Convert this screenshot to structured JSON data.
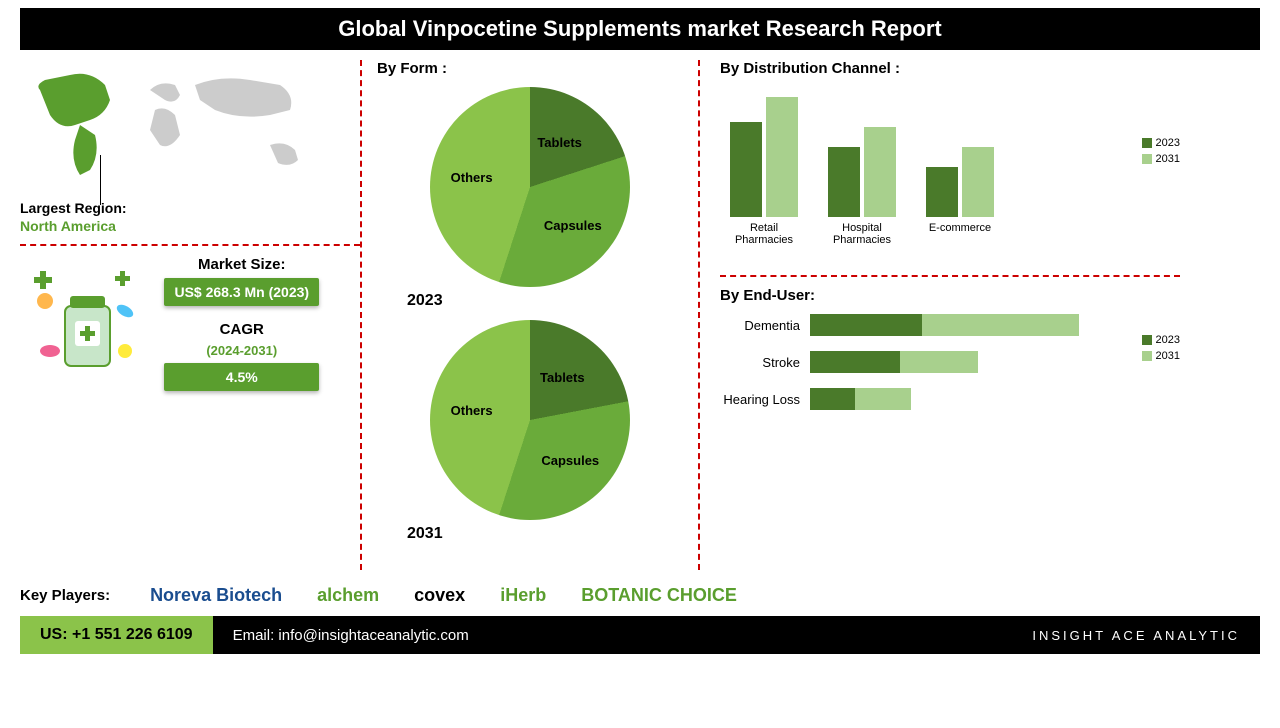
{
  "title": "Global Vinpocetine Supplements market Research Report",
  "region": {
    "label": "Largest Region:",
    "value": "North America",
    "map_fill": "#5a9e2e",
    "map_other": "#cccccc"
  },
  "market_size": {
    "label": "Market Size:",
    "value": "US$ 268.3 Mn (2023)"
  },
  "cagr": {
    "label": "CAGR",
    "period": "(2024-2031)",
    "value": "4.5%"
  },
  "form": {
    "title": "By Form :",
    "years": [
      "2023",
      "2031"
    ],
    "pie2023": {
      "slices": [
        {
          "label": "Tablets",
          "value": 20,
          "color": "#4a7a2a"
        },
        {
          "label": "Capsules",
          "value": 35,
          "color": "#6aab3a"
        },
        {
          "label": "Others",
          "value": 45,
          "color": "#8bc34a"
        }
      ]
    },
    "pie2031": {
      "slices": [
        {
          "label": "Tablets",
          "value": 22,
          "color": "#4a7a2a"
        },
        {
          "label": "Capsules",
          "value": 33,
          "color": "#6aab3a"
        },
        {
          "label": "Others",
          "value": 45,
          "color": "#8bc34a"
        }
      ]
    }
  },
  "distribution": {
    "title": "By Distribution Channel :",
    "categories": [
      "Retail Pharmacies",
      "Hospital Pharmacies",
      "E-commerce"
    ],
    "series": [
      {
        "year": "2023",
        "color": "#4a7a2a",
        "values": [
          95,
          70,
          50
        ]
      },
      {
        "year": "2031",
        "color": "#a8d08d",
        "values": [
          120,
          90,
          70
        ]
      }
    ],
    "ymax": 130
  },
  "enduser": {
    "title": "By End-User:",
    "categories": [
      "Dementia",
      "Stroke",
      "Hearing Loss"
    ],
    "series": [
      {
        "year": "2023",
        "color": "#4a7a2a",
        "values": [
          100,
          80,
          40
        ]
      },
      {
        "year": "2031",
        "color": "#a8d08d",
        "values": [
          140,
          70,
          50
        ]
      }
    ],
    "xmax": 250
  },
  "players": {
    "label": "Key Players:",
    "logos": [
      {
        "name": "Noreva Biotech",
        "color": "#1a4d8f"
      },
      {
        "name": "alchem",
        "color": "#5a9e2e"
      },
      {
        "name": "covex",
        "color": "#000"
      },
      {
        "name": "iHerb",
        "color": "#5a9e2e"
      },
      {
        "name": "BOTANIC CHOICE",
        "color": "#5a9e2e"
      }
    ]
  },
  "footer": {
    "phone": "US: +1 551 226 6109",
    "email": "Email: info@insightaceanalytic.com",
    "brand": "INSIGHT ACE ANALYTIC"
  }
}
